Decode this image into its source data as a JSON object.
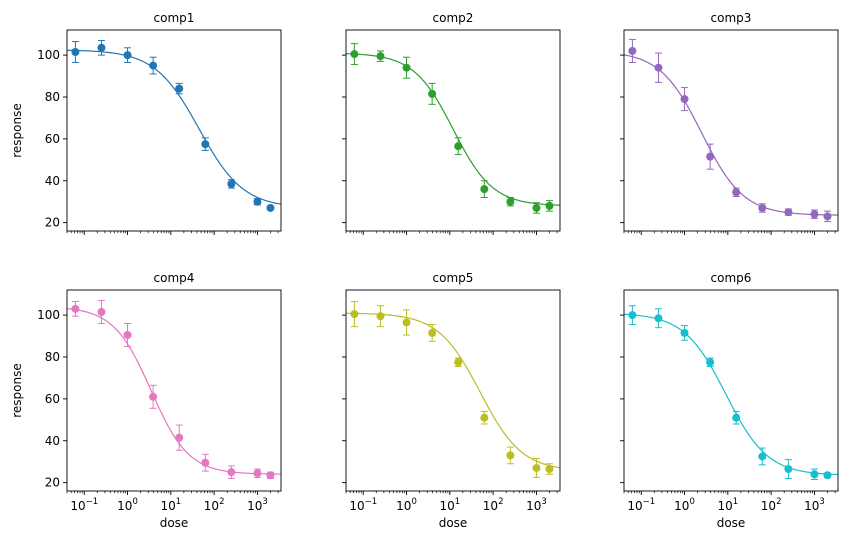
{
  "chart_data": {
    "type": "scatter",
    "layout": "2x3 grid",
    "xscale": "log",
    "xlim": [
      0.04,
      3500
    ],
    "ylim": [
      16,
      112
    ],
    "x_ticks": [
      0.1,
      1,
      10,
      100,
      1000
    ],
    "x_tick_labels": [
      {
        "base": "10",
        "exp": "−1"
      },
      {
        "base": "10",
        "exp": "0"
      },
      {
        "base": "10",
        "exp": "1"
      },
      {
        "base": "10",
        "exp": "2"
      },
      {
        "base": "10",
        "exp": "3"
      }
    ],
    "y_ticks": [
      20,
      40,
      60,
      80,
      100
    ],
    "y_tick_labels": [
      "20",
      "40",
      "60",
      "80",
      "100"
    ],
    "xlabel": "dose",
    "ylabel": "response",
    "sharex": true,
    "sharey": true,
    "fit_curve": "four-parameter logistic",
    "doses": [
      0.0625,
      0.25,
      1,
      3.9,
      15.6,
      62.5,
      250,
      1000,
      2000
    ],
    "panels": [
      {
        "title": "comp1",
        "color": "#1f77b4",
        "y": [
          101.5,
          103.5,
          100,
          95,
          84,
          57.5,
          38.5,
          30,
          27
        ],
        "yerr": [
          5,
          3.5,
          3.5,
          4,
          2.5,
          3,
          2,
          1.5,
          0.5
        ],
        "fit": {
          "top": 102.5,
          "bottom": 27,
          "ec50": 45,
          "hill": 0.85
        }
      },
      {
        "title": "comp2",
        "color": "#2ca02c",
        "y": [
          100.5,
          99.5,
          94,
          81.5,
          56.5,
          36,
          30,
          27,
          28
        ],
        "yerr": [
          5,
          2.5,
          5,
          5,
          4,
          4,
          2,
          2.5,
          2.5
        ],
        "fit": {
          "top": 101,
          "bottom": 28,
          "ec50": 12,
          "hill": 0.95
        }
      },
      {
        "title": "comp3",
        "color": "#9467bd",
        "y": [
          102,
          94,
          79,
          51.5,
          34.5,
          27,
          25,
          24,
          23
        ],
        "yerr": [
          5.5,
          7,
          5.5,
          6,
          2,
          2,
          1.5,
          2,
          2.5
        ],
        "fit": {
          "top": 102,
          "bottom": 23.5,
          "ec50": 2.5,
          "hill": 0.9
        }
      },
      {
        "title": "comp4",
        "color": "#e377c2",
        "y": [
          103,
          101.5,
          90.5,
          61,
          41.5,
          29.5,
          25,
          24.5,
          23.5
        ],
        "yerr": [
          3.5,
          5.5,
          5.5,
          5.5,
          6,
          4,
          3,
          2,
          1.5
        ],
        "fit": {
          "top": 104,
          "bottom": 24,
          "ec50": 3.5,
          "hill": 1.0
        }
      },
      {
        "title": "comp5",
        "color": "#bcbd22",
        "y": [
          100.5,
          99.5,
          96.5,
          91.5,
          77.5,
          51,
          33,
          27,
          26.5
        ],
        "yerr": [
          6,
          5,
          6,
          4,
          2,
          3,
          4,
          4.5,
          2.5
        ],
        "fit": {
          "top": 101,
          "bottom": 25.5,
          "ec50": 50,
          "hill": 0.9
        }
      },
      {
        "title": "comp6",
        "color": "#17becf",
        "y": [
          100,
          98.5,
          91.5,
          77.5,
          51,
          32.5,
          26.5,
          24,
          23.5
        ],
        "yerr": [
          4.5,
          4.5,
          3.5,
          2,
          3,
          4,
          4.5,
          2.5,
          1
        ],
        "fit": {
          "top": 101,
          "bottom": 23.5,
          "ec50": 9,
          "hill": 0.9
        }
      }
    ]
  }
}
